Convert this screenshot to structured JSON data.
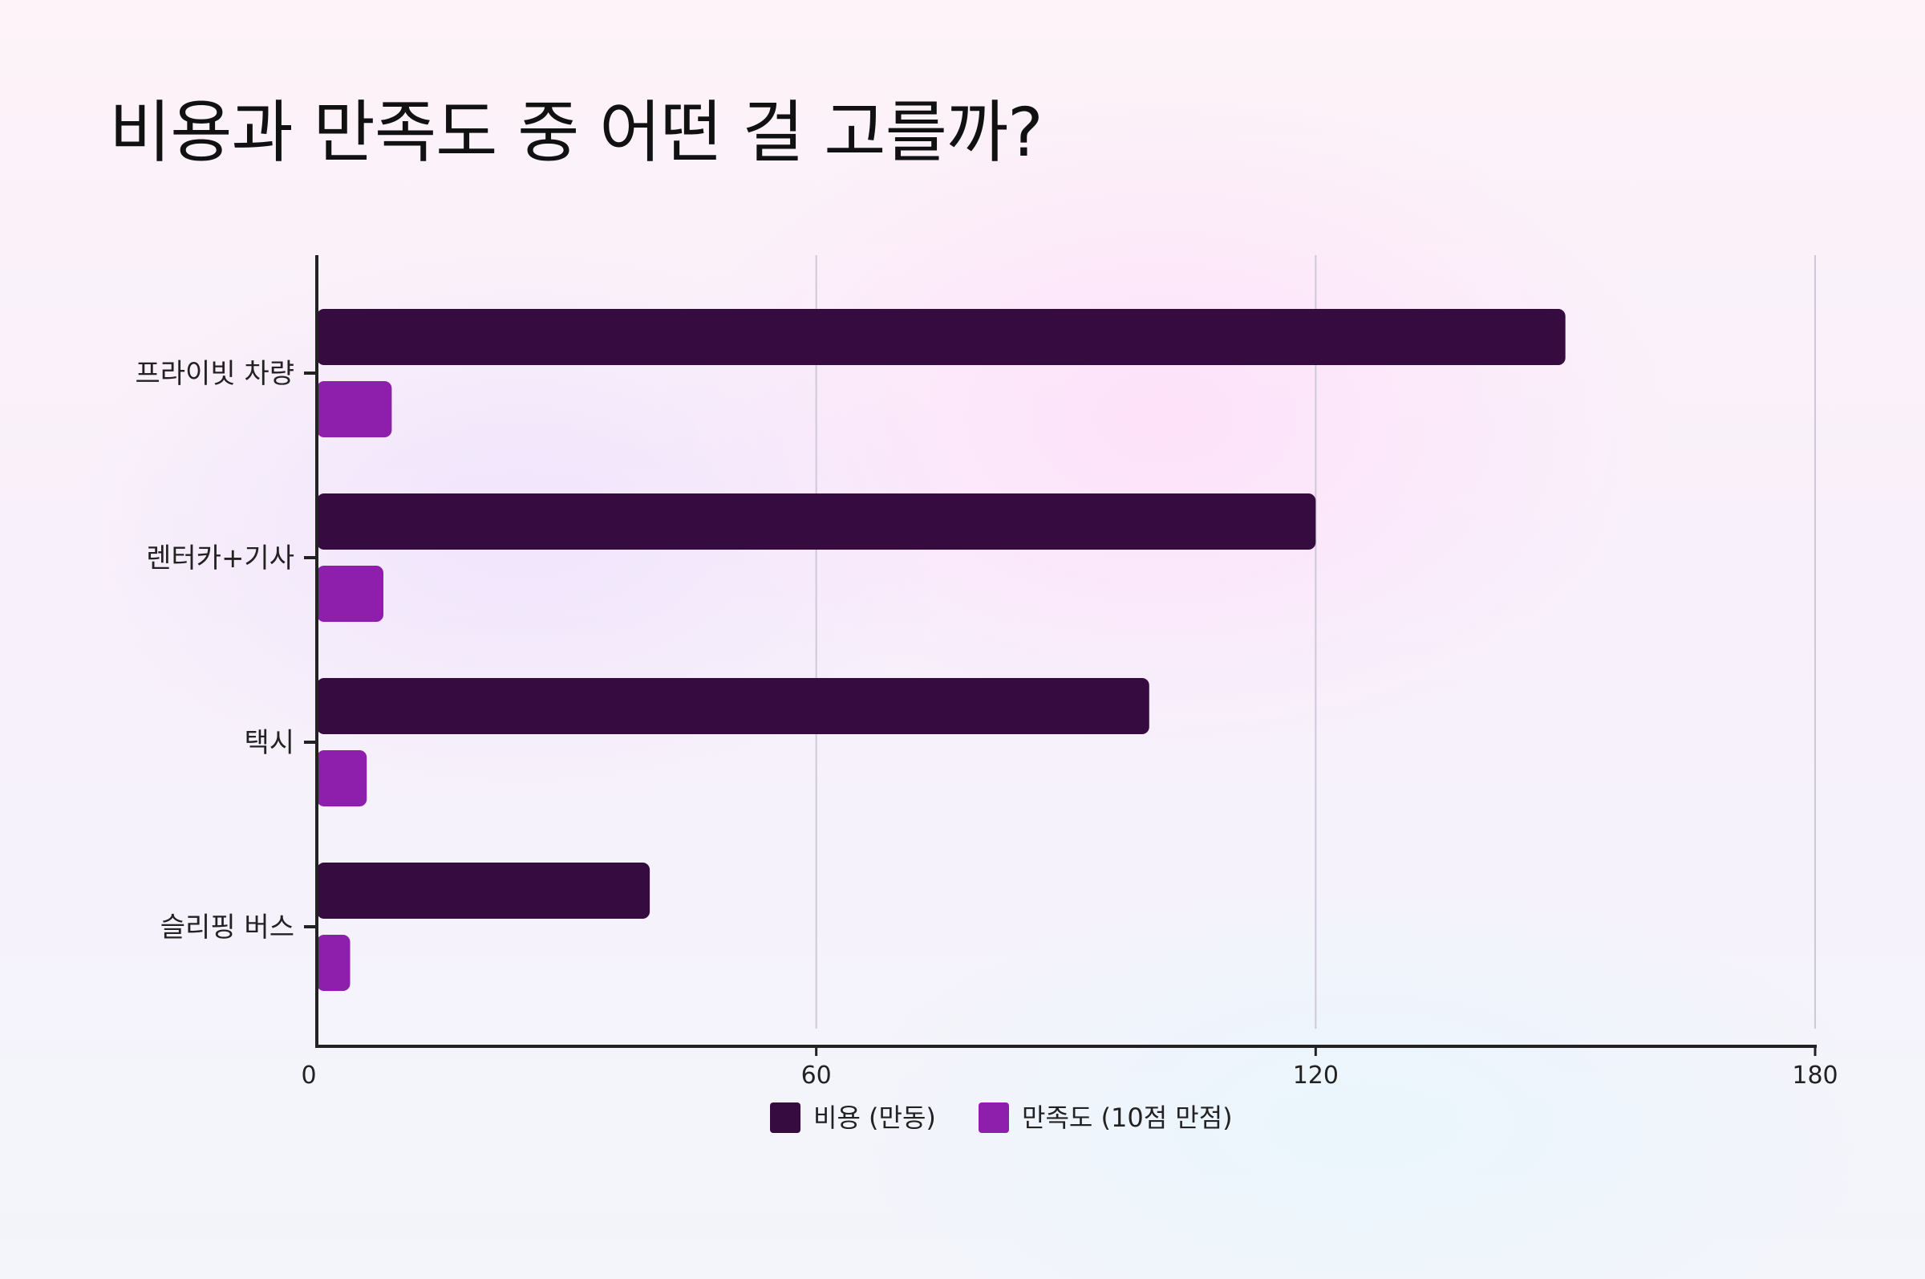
{
  "chart_data": {
    "type": "bar",
    "orientation": "horizontal",
    "title": "비용과 만족도 중 어떤 걸 고를까?",
    "categories": [
      "프라이빗 차량",
      "렌터카+기사",
      "택시",
      "슬리핑 버스"
    ],
    "series": [
      {
        "name": "비용 (만동)",
        "values": [
          150,
          120,
          100,
          40
        ],
        "color": "#360b3f"
      },
      {
        "name": "만족도 (10점 만점)",
        "values": [
          9,
          8,
          6,
          4
        ],
        "color": "#8e1fad"
      }
    ],
    "xlim": [
      0,
      180
    ],
    "xticks": [
      0,
      60,
      120,
      180
    ],
    "xlabel": "",
    "ylabel": "",
    "grid": true,
    "legend": "bottom-center"
  }
}
